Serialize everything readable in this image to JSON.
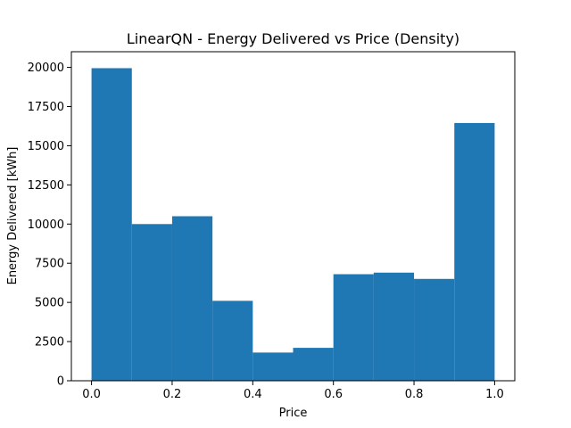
{
  "chart_data": {
    "type": "bar",
    "title": "LinearQN - Energy Delivered vs Price (Density)",
    "xlabel": "Price",
    "ylabel": "Energy Delivered [kWh]",
    "xlim": [
      -0.05,
      1.05
    ],
    "ylim": [
      0,
      21000
    ],
    "xticks": [
      0.0,
      0.2,
      0.4,
      0.6,
      0.8,
      1.0
    ],
    "xtick_labels": [
      "0.0",
      "0.2",
      "0.4",
      "0.6",
      "0.8",
      "1.0"
    ],
    "yticks": [
      0,
      2500,
      5000,
      7500,
      10000,
      12500,
      15000,
      17500,
      20000
    ],
    "ytick_labels": [
      "0",
      "2500",
      "5000",
      "7500",
      "10000",
      "12500",
      "15000",
      "17500",
      "20000"
    ],
    "bin_edges": [
      0.0,
      0.1,
      0.2,
      0.3,
      0.4,
      0.5,
      0.6,
      0.7,
      0.8,
      0.9,
      1.0
    ],
    "values": [
      19950,
      10000,
      10500,
      5100,
      1800,
      2100,
      6800,
      6900,
      6500,
      16450
    ],
    "bar_color": "#1f77b4",
    "grid": false,
    "legend": "none"
  }
}
